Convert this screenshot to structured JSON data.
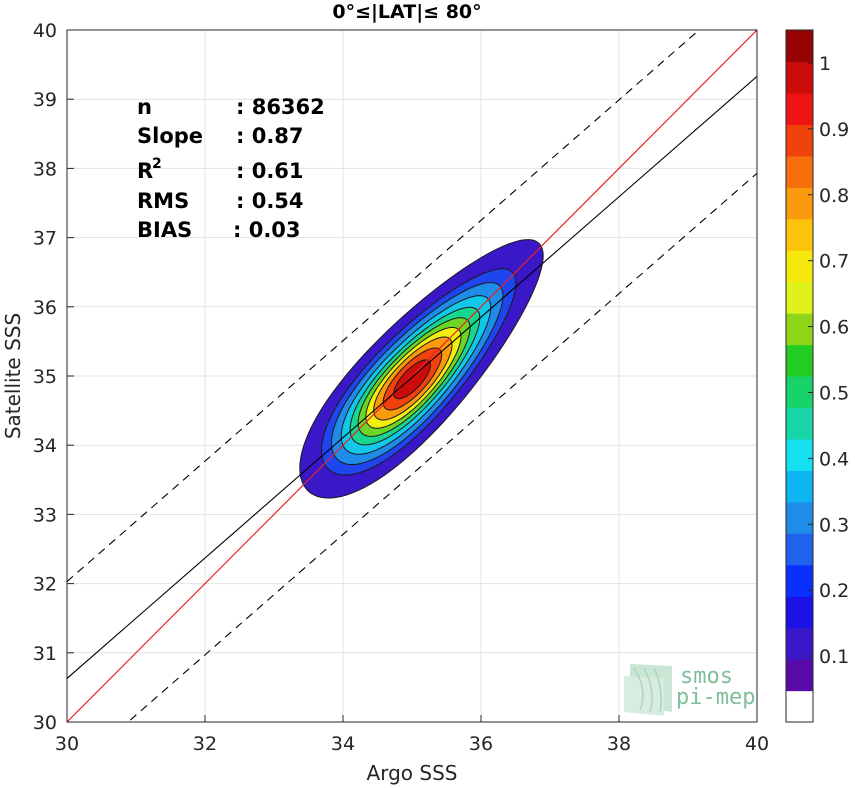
{
  "chart_data": {
    "type": "contour-density",
    "title": "0°≤|LAT|≤ 80°",
    "xlabel": "Argo SSS",
    "ylabel": "Satellite SSS",
    "xlim": [
      30,
      40
    ],
    "ylim": [
      30,
      40
    ],
    "x_ticks": [
      "30",
      "32",
      "34",
      "36",
      "38",
      "40"
    ],
    "y_ticks": [
      "30",
      "31",
      "32",
      "33",
      "34",
      "35",
      "36",
      "37",
      "38",
      "39",
      "40"
    ],
    "grid": true,
    "stats": [
      {
        "label": "n",
        "value": ": 86362"
      },
      {
        "label": "Slope",
        "value": ": 0.87"
      },
      {
        "label": "R",
        "sup": "2",
        "value": ": 0.61"
      },
      {
        "label": "RMS",
        "value": ": 0.54"
      },
      {
        "label": "BIAS",
        "value": ": 0.03"
      }
    ],
    "lines": {
      "identity": {
        "color": "#e8202a",
        "points": [
          [
            30,
            30
          ],
          [
            40,
            40
          ]
        ]
      },
      "fit": {
        "color": "#000000",
        "slope": 0.87,
        "intercept": 4.53
      },
      "fit_upper": {
        "color": "#000000",
        "dash": true,
        "slope": 0.87,
        "intercept": 5.93
      },
      "fit_lower": {
        "color": "#000000",
        "dash": true,
        "slope": 0.87,
        "intercept": 3.13
      }
    },
    "density": {
      "center": [
        35.0,
        34.95
      ],
      "angle_deg": 47,
      "levels": [
        {
          "level": 0.05,
          "color": "#3a18c8",
          "a": 2.45,
          "b": 0.75
        },
        {
          "level": 0.15,
          "color": "#1f45ee",
          "a": 1.95,
          "b": 0.62
        },
        {
          "level": 0.25,
          "color": "#1e8ce8",
          "a": 1.72,
          "b": 0.55
        },
        {
          "level": 0.35,
          "color": "#11c8e8",
          "a": 1.5,
          "b": 0.48
        },
        {
          "level": 0.45,
          "color": "#19d68f",
          "a": 1.3,
          "b": 0.42
        },
        {
          "level": 0.55,
          "color": "#6dd428",
          "a": 1.12,
          "b": 0.37
        },
        {
          "level": 0.65,
          "color": "#f2ee10",
          "a": 0.95,
          "b": 0.32
        },
        {
          "level": 0.75,
          "color": "#fb9a0c",
          "a": 0.78,
          "b": 0.27
        },
        {
          "level": 0.85,
          "color": "#f0420c",
          "a": 0.58,
          "b": 0.21
        },
        {
          "level": 0.95,
          "color": "#cc0b0b",
          "a": 0.36,
          "b": 0.14
        }
      ]
    },
    "colorbar": {
      "ticks": [
        "0.1",
        "0.2",
        "0.3",
        "0.4",
        "0.5",
        "0.6",
        "0.7",
        "0.8",
        "0.9",
        "1"
      ],
      "tick_values": [
        0.1,
        0.2,
        0.3,
        0.4,
        0.5,
        0.6,
        0.7,
        0.8,
        0.9,
        1.0
      ],
      "colors": [
        "#ffffff",
        "#5a0aa8",
        "#3a18c8",
        "#1a12e6",
        "#0a30ff",
        "#1f62ee",
        "#1e8ce8",
        "#0fb5f0",
        "#15e0f0",
        "#19d6a8",
        "#18d26a",
        "#22cc22",
        "#8fd61a",
        "#dff21a",
        "#f6e80c",
        "#fbc40a",
        "#fb9a0c",
        "#f76e0c",
        "#f0420c",
        "#ef1414",
        "#cc0b0b",
        "#960404"
      ]
    },
    "logo": {
      "line1": "smos",
      "line2": "pi-mep"
    }
  }
}
